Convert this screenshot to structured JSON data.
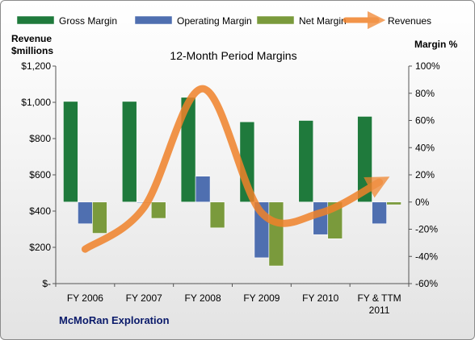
{
  "chart_data": {
    "type": "bar",
    "title": "12-Month Period Margins",
    "categories": [
      "FY 2006",
      "FY 2007",
      "FY 2008",
      "FY 2009",
      "FY 2010",
      "FY & TTM 2011"
    ],
    "series": [
      {
        "name": "Gross Margin",
        "axis": "right",
        "color": "#1f7a3c",
        "values": [
          74,
          74,
          77,
          59,
          60,
          63
        ]
      },
      {
        "name": "Operating Margin",
        "axis": "right",
        "color": "#4f6fb0",
        "values": [
          -16,
          0,
          19,
          -41,
          -24,
          -16
        ]
      },
      {
        "name": "Net Margin",
        "axis": "right",
        "color": "#7a9a3c",
        "values": [
          -23,
          -12,
          -19,
          -47,
          -27,
          -2
        ]
      },
      {
        "name": "Revenues",
        "axis": "left",
        "type": "line",
        "color": "#f0822a",
        "values": [
          190,
          420,
          1075,
          390,
          390,
          560
        ]
      }
    ],
    "left_axis": {
      "label": "Revenue $millions",
      "ylim": [
        0,
        1200
      ],
      "ticks": [
        {
          "v": 1200,
          "t": "$1,200"
        },
        {
          "v": 1000,
          "t": "$1,000"
        },
        {
          "v": 800,
          "t": "$800"
        },
        {
          "v": 600,
          "t": "$600"
        },
        {
          "v": 400,
          "t": "$400"
        },
        {
          "v": 200,
          "t": "$200"
        },
        {
          "v": 0,
          "t": "$-"
        }
      ]
    },
    "right_axis": {
      "label": "Margin %",
      "ylim": [
        -60,
        100
      ],
      "ticks": [
        {
          "v": 100,
          "t": "100%"
        },
        {
          "v": 80,
          "t": "80%"
        },
        {
          "v": 60,
          "t": "60%"
        },
        {
          "v": 40,
          "t": "40%"
        },
        {
          "v": 20,
          "t": "20%"
        },
        {
          "v": 0,
          "t": "0%"
        },
        {
          "v": -20,
          "t": "-20%"
        },
        {
          "v": -40,
          "t": "-40%"
        },
        {
          "v": -60,
          "t": "-60%"
        }
      ]
    },
    "legend": "top",
    "grid": false,
    "footer": "McMoRan Exploration"
  }
}
